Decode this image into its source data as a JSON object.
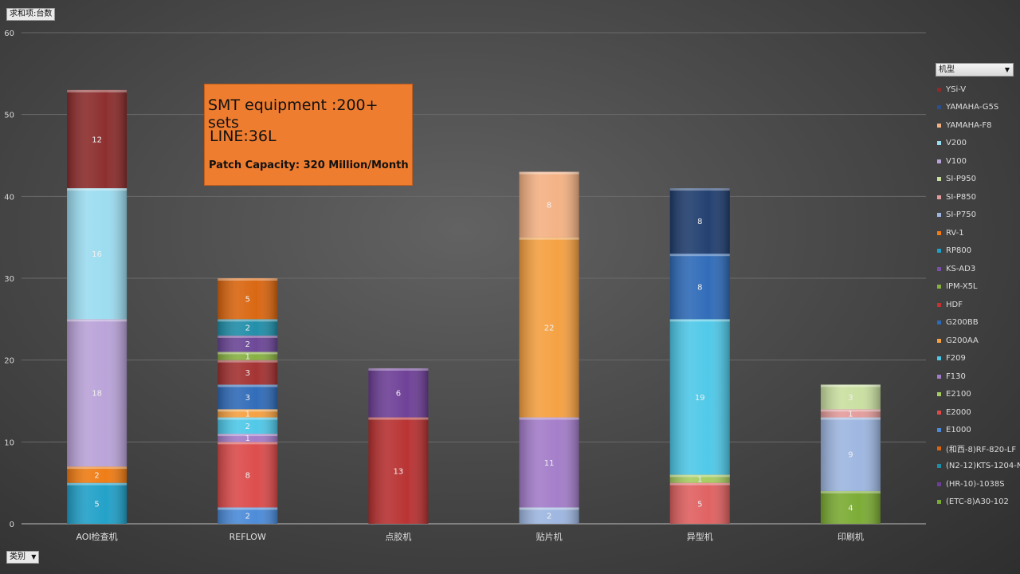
{
  "filters": {
    "values_field": "求和项:台数",
    "legend_field": "机型",
    "category_field": "类别"
  },
  "info_box": {
    "line1": "SMT equipment :200+ sets",
    "line2": "LINE:36L",
    "line3": "Patch Capacity: 320 Million/Month"
  },
  "legend": [
    {
      "label": "YSi-V",
      "color": "#8b2b2b"
    },
    {
      "label": "YAMAHA-G5S",
      "color": "#2a4f8a"
    },
    {
      "label": "YAMAHA-F8",
      "color": "#f4b183"
    },
    {
      "label": "V200",
      "color": "#9bdcf0"
    },
    {
      "label": "V100",
      "color": "#b9a2d8"
    },
    {
      "label": "SI-P950",
      "color": "#c9dfa0"
    },
    {
      "label": "SI-P850",
      "color": "#e49b9b"
    },
    {
      "label": "SI-P750",
      "color": "#9db6e0"
    },
    {
      "label": "RV-1",
      "color": "#ef7b12"
    },
    {
      "label": "RP800",
      "color": "#1fa0c8"
    },
    {
      "label": "KS-AD3",
      "color": "#7a4fa8"
    },
    {
      "label": "IPM-X5L",
      "color": "#86b040"
    },
    {
      "label": "HDF",
      "color": "#c43232"
    },
    {
      "label": "G200BB",
      "color": "#2e6ab8"
    },
    {
      "label": "G200AA",
      "color": "#f5a040"
    },
    {
      "label": "F209",
      "color": "#4ec8e8"
    },
    {
      "label": "F130",
      "color": "#a37cc9"
    },
    {
      "label": "E2100",
      "color": "#a7cc62"
    },
    {
      "label": "E2000",
      "color": "#dc4a4a"
    },
    {
      "label": "E1000",
      "color": "#4a8ad8"
    },
    {
      "label": "(和西-8)RF-820-LF",
      "color": "#d9650e"
    },
    {
      "label": "(N2-12)KTS-1204-NX",
      "color": "#1f8da8"
    },
    {
      "label": "(HR-10)-1038S",
      "color": "#6d3e96"
    },
    {
      "label": "(ETC-8)A30-102",
      "color": "#7aab32"
    }
  ],
  "chart_data": {
    "type": "bar",
    "stacked": true,
    "categories": [
      "AOI检查机",
      "REFLOW",
      "点胶机",
      "贴片机",
      "异型机",
      "印刷机"
    ],
    "ylim": [
      0,
      60
    ],
    "yticks": [
      0,
      10,
      20,
      30,
      40,
      50,
      60
    ],
    "grid": true,
    "legend_position": "right",
    "stacks": [
      [
        {
          "series": "RP800",
          "value": 5,
          "color": "#1fa0c8"
        },
        {
          "series": "RV-1",
          "value": 2,
          "color": "#ef7b12"
        },
        {
          "series": "V100",
          "value": 18,
          "color": "#b9a2d8"
        },
        {
          "series": "V200",
          "value": 16,
          "color": "#9bdcf0"
        },
        {
          "series": "YSi-V",
          "value": 12,
          "color": "#8b2b2b"
        }
      ],
      [
        {
          "series": "E1000",
          "value": 2,
          "color": "#4a8ad8"
        },
        {
          "series": "E2000",
          "value": 8,
          "color": "#dc4a4a"
        },
        {
          "series": "F130",
          "value": 1,
          "color": "#a37cc9"
        },
        {
          "series": "F209",
          "value": 2,
          "color": "#4ec8e8"
        },
        {
          "series": "G200AA",
          "value": 1,
          "color": "#f5a040"
        },
        {
          "series": "G200BB",
          "value": 3,
          "color": "#2e6ab8"
        },
        {
          "series": "HDF",
          "value": 3,
          "color": "#a33030"
        },
        {
          "series": "IPM-X5L",
          "value": 1,
          "color": "#86b040"
        },
        {
          "series": "KS-AD3",
          "value": 2,
          "color": "#6a4596"
        },
        {
          "series": "(N2-12)KTS-1204-NX",
          "value": 2,
          "color": "#1f8da8"
        },
        {
          "series": "(和西-8)RF-820-LF",
          "value": 5,
          "color": "#d9650e"
        }
      ],
      [
        {
          "series": "HDF",
          "value": 13,
          "color": "#b83030"
        },
        {
          "series": "(HR-10)-1038S",
          "value": 6,
          "color": "#6d3e96"
        }
      ],
      [
        {
          "series": "SI-P750",
          "value": 2,
          "color": "#9db6e0"
        },
        {
          "series": "F130",
          "value": 11,
          "color": "#a37cc9"
        },
        {
          "series": "G200AA",
          "value": 22,
          "color": "#f5a040"
        },
        {
          "series": "YAMAHA-F8",
          "value": 8,
          "color": "#f4b183"
        }
      ],
      [
        {
          "series": "E2000",
          "value": 5,
          "color": "#e06060"
        },
        {
          "series": "E2100",
          "value": 1,
          "color": "#a7cc62"
        },
        {
          "series": "F209",
          "value": 19,
          "color": "#4ec8e8"
        },
        {
          "series": "G200BB",
          "value": 8,
          "color": "#2e6ab8"
        },
        {
          "series": "YAMAHA-G5S",
          "value": 8,
          "color": "#1f3d6e"
        }
      ],
      [
        {
          "series": "(ETC-8)A30-102",
          "value": 4,
          "color": "#7aab32"
        },
        {
          "series": "SI-P750",
          "value": 9,
          "color": "#9db6e0"
        },
        {
          "series": "SI-P850",
          "value": 1,
          "color": "#e49b9b"
        },
        {
          "series": "SI-P950",
          "value": 3,
          "color": "#c9dfa0"
        }
      ]
    ]
  }
}
